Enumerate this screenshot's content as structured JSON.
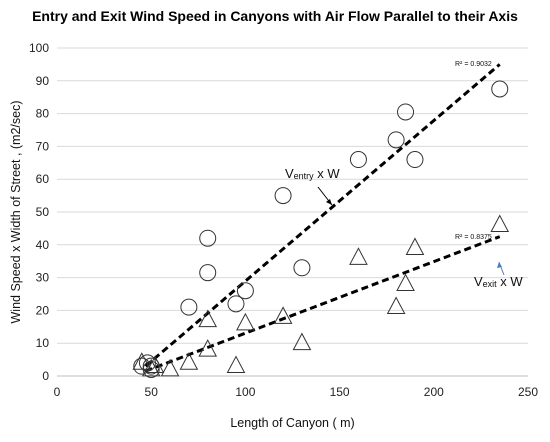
{
  "chart_data": {
    "type": "scatter",
    "title": "Entry and Exit Wind Speed in Canyons with Air Flow Parallel to their Axis",
    "xlabel": "Length of Canyon ( m)",
    "ylabel": "Wind Speed x Width of Street , (m2/sec)",
    "xlim": [
      0,
      250
    ],
    "ylim": [
      0,
      100
    ],
    "xticks": [
      0,
      50,
      100,
      150,
      200,
      250
    ],
    "yticks": [
      0,
      10,
      20,
      30,
      40,
      50,
      60,
      70,
      80,
      90,
      100
    ],
    "grid": true,
    "series": [
      {
        "marker": "circle",
        "points": [
          [
            45,
            3
          ],
          [
            50,
            3
          ],
          [
            48,
            4
          ],
          [
            50,
            2
          ],
          [
            70,
            21
          ],
          [
            80,
            42
          ],
          [
            80,
            31.5
          ],
          [
            95,
            22
          ],
          [
            100,
            26
          ],
          [
            120,
            55
          ],
          [
            130,
            33
          ],
          [
            160,
            66
          ],
          [
            180,
            72
          ],
          [
            185,
            80.5
          ],
          [
            190,
            66
          ],
          [
            235,
            87.5
          ]
        ],
        "trendline": {
          "x": [
            47,
            235
          ],
          "y": [
            3,
            95
          ]
        },
        "r2": "R² = 0.9032",
        "annotation_main": "V",
        "annotation_sub": "entry",
        "annotation_tail": " x W"
      },
      {
        "marker": "triangle",
        "points": [
          [
            45,
            4
          ],
          [
            50,
            2
          ],
          [
            52,
            3
          ],
          [
            60,
            2
          ],
          [
            70,
            4
          ],
          [
            80,
            17
          ],
          [
            80,
            8
          ],
          [
            95,
            3
          ],
          [
            100,
            16
          ],
          [
            120,
            18
          ],
          [
            130,
            10
          ],
          [
            160,
            36
          ],
          [
            180,
            21
          ],
          [
            185,
            28
          ],
          [
            190,
            39
          ],
          [
            235,
            46
          ]
        ],
        "trendline": {
          "x": [
            47,
            235
          ],
          "y": [
            1.5,
            42.5
          ]
        },
        "r2": "R² = 0.8375",
        "annotation_main": "V",
        "annotation_sub": "exit",
        "annotation_tail": " x W"
      }
    ]
  }
}
